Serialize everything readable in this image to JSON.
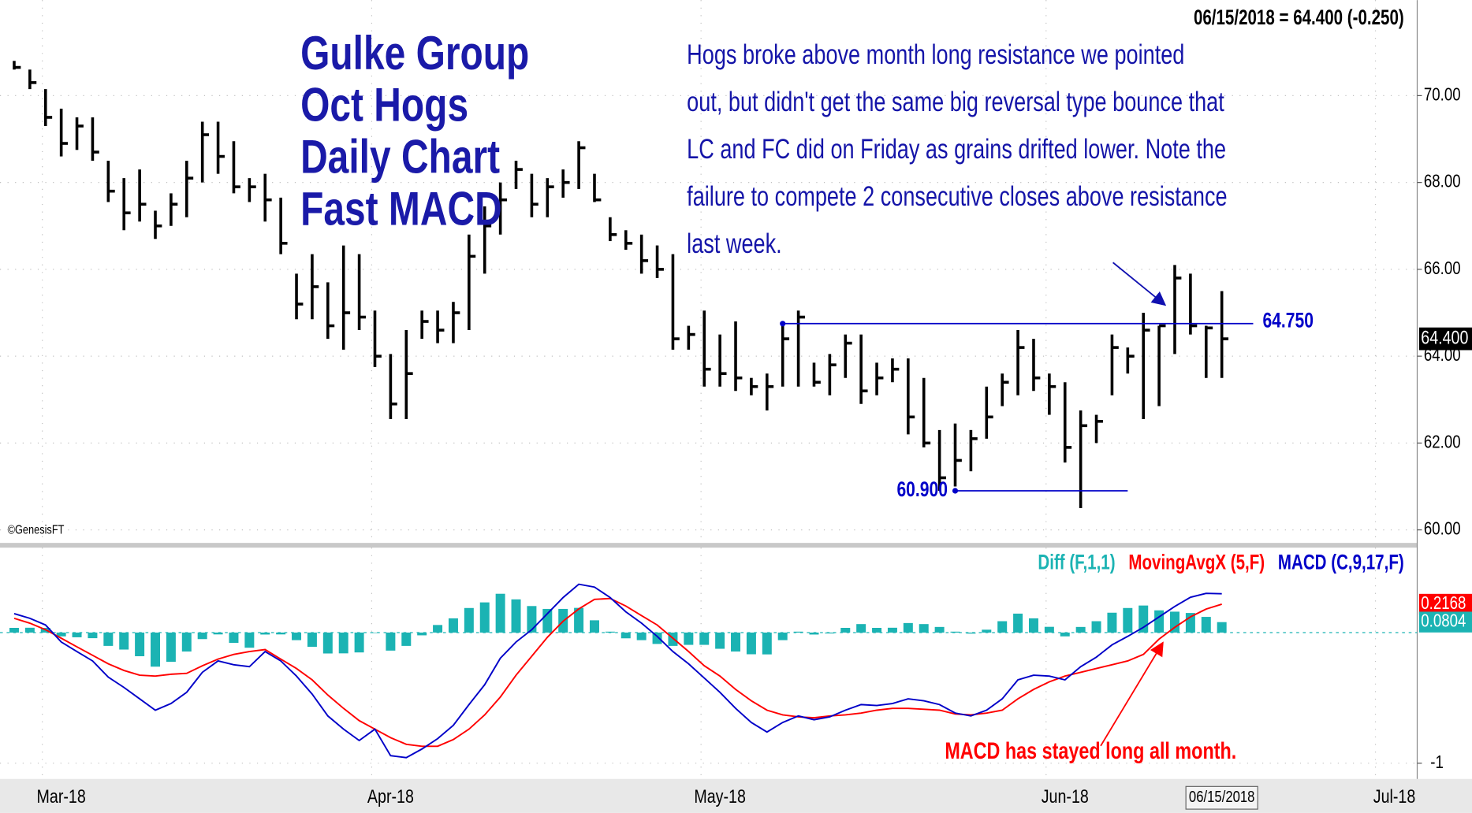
{
  "chart_data": [
    {
      "type": "ohlc",
      "header": "06/15/2018 = 64.400 (-0.250)",
      "title_lines": [
        "Gulke Group",
        "Oct Hogs",
        "Daily Chart",
        "Fast MACD"
      ],
      "note_lines": [
        "Hogs broke above month long resistance we pointed",
        "out, but didn't get the same big reversal type bounce that",
        "LC and FC did on Friday as grains drifted lower.  Note the",
        "failure to compete 2 consecutive closes above resistance",
        "last week."
      ],
      "copyright": "©GenesisFT",
      "cursor_date": "06/15/2018",
      "color": "#000000",
      "categories": [
        null,
        null,
        null,
        "Mar-18",
        null,
        null,
        null,
        null,
        null,
        null,
        null,
        null,
        null,
        null,
        null,
        null,
        null,
        null,
        null,
        null,
        null,
        null,
        null,
        null,
        "Apr-18",
        null,
        null,
        null,
        null,
        null,
        null,
        null,
        null,
        null,
        null,
        null,
        null,
        null,
        null,
        null,
        null,
        null,
        null,
        null,
        null,
        "May-18",
        null,
        null,
        null,
        null,
        null,
        null,
        null,
        null,
        null,
        null,
        null,
        null,
        null,
        null,
        null,
        null,
        null,
        null,
        null,
        null,
        null,
        "Jun-18",
        null,
        null,
        null,
        null,
        null,
        null,
        null,
        null,
        null,
        null,
        null,
        null,
        null,
        null,
        null,
        null,
        null,
        null,
        null,
        null,
        "Jul-18"
      ],
      "high": [
        70.8,
        70.6,
        70.15,
        69.7,
        69.5,
        69.5,
        68.5,
        68.1,
        68.3,
        67.35,
        67.75,
        68.5,
        69.4,
        69.4,
        68.95,
        68.1,
        68.2,
        67.65,
        65.9,
        66.35,
        65.7,
        66.55,
        66.35,
        65.05,
        64.05,
        64.6,
        65.05,
        65.05,
        65.25,
        66.8,
        67.45,
        68.0,
        68.5,
        68.2,
        68.1,
        68.3,
        68.95,
        68.2,
        67.2,
        66.9,
        66.8,
        66.55,
        66.35,
        64.7,
        65.05,
        64.5,
        64.8,
        63.5,
        63.6,
        64.8,
        65.05,
        63.85,
        64.05,
        64.5,
        64.5,
        63.85,
        63.95,
        63.95,
        63.5,
        62.3,
        62.45,
        62.3,
        63.3,
        63.6,
        64.6,
        64.4,
        63.6,
        63.4,
        62.75,
        62.65,
        64.5,
        64.2,
        65.0,
        64.7,
        66.1,
        65.9,
        64.7,
        65.5,
        null,
        null,
        null,
        null,
        null,
        null,
        null,
        null,
        null,
        null,
        null
      ],
      "low": [
        70.6,
        70.15,
        69.3,
        68.6,
        68.75,
        68.5,
        67.55,
        66.9,
        67.1,
        66.7,
        67.0,
        67.2,
        68.0,
        68.2,
        67.75,
        67.55,
        67.1,
        66.35,
        64.85,
        64.85,
        64.4,
        64.15,
        64.6,
        63.75,
        62.55,
        62.55,
        64.4,
        64.3,
        64.3,
        64.6,
        65.9,
        66.8,
        67.85,
        67.2,
        67.2,
        67.65,
        67.85,
        67.55,
        66.65,
        66.45,
        65.9,
        65.8,
        64.15,
        64.15,
        63.3,
        63.3,
        63.2,
        63.1,
        62.75,
        63.3,
        63.3,
        63.3,
        63.1,
        63.5,
        62.9,
        63.1,
        63.4,
        62.2,
        61.9,
        60.9,
        61.0,
        61.35,
        62.1,
        62.85,
        63.1,
        63.2,
        62.65,
        61.55,
        60.5,
        62.0,
        63.1,
        63.6,
        62.55,
        62.85,
        64.05,
        64.5,
        63.5,
        63.5,
        null,
        null,
        null,
        null,
        null,
        null,
        null,
        null,
        null,
        null,
        null
      ],
      "close": [
        70.65,
        70.3,
        69.5,
        68.9,
        69.3,
        68.7,
        67.8,
        67.3,
        67.5,
        67.0,
        67.5,
        68.1,
        69.1,
        68.6,
        67.9,
        67.9,
        67.6,
        66.6,
        65.2,
        65.6,
        64.7,
        65.0,
        64.9,
        64.0,
        62.9,
        63.6,
        64.8,
        64.6,
        65.0,
        66.3,
        67.0,
        67.6,
        68.3,
        67.5,
        67.9,
        68.0,
        68.8,
        67.6,
        66.8,
        66.6,
        66.2,
        66.0,
        64.4,
        64.5,
        63.7,
        63.6,
        63.5,
        63.3,
        63.3,
        64.4,
        64.9,
        63.4,
        63.8,
        64.3,
        63.2,
        63.5,
        63.7,
        62.6,
        62.0,
        61.2,
        61.6,
        62.1,
        62.6,
        63.4,
        64.2,
        63.5,
        63.3,
        61.9,
        62.4,
        62.5,
        64.2,
        64.0,
        64.6,
        64.7,
        65.8,
        64.7,
        64.65,
        64.4,
        null,
        null,
        null,
        null,
        null,
        null,
        null,
        null,
        null,
        null,
        null
      ],
      "levels": [
        {
          "value": 64.75,
          "label": "64.750"
        },
        {
          "value": 60.9,
          "label": "60.900"
        }
      ],
      "last_price": {
        "value": 64.4,
        "label": "64.400"
      },
      "ylim": [
        59.7,
        72.2
      ],
      "yticks": [
        {
          "value": 60,
          "label": "60.00"
        },
        {
          "value": 62,
          "label": "62.00"
        },
        {
          "value": 64,
          "label": "64.00"
        },
        {
          "value": 66,
          "label": "66.00"
        },
        {
          "value": 68,
          "label": "68.00"
        },
        {
          "value": 70,
          "label": "70.00"
        }
      ],
      "grid": true
    },
    {
      "type": "macd",
      "annotation": "MACD has stayed long all month.",
      "series": [
        {
          "name": "Diff (F,1,1)",
          "type": "histogram",
          "color": "#1bb3b3",
          "values": [
            0.036,
            0.037,
            0.036,
            -0.029,
            -0.036,
            -0.043,
            -0.102,
            -0.13,
            -0.181,
            -0.261,
            -0.224,
            -0.145,
            -0.05,
            -0.014,
            -0.079,
            -0.116,
            -0.015,
            -0.014,
            -0.058,
            -0.109,
            -0.16,
            -0.159,
            -0.152,
            0,
            -0.138,
            -0.102,
            -0.021,
            0.058,
            0.109,
            0.188,
            0.231,
            0.297,
            0.254,
            0.203,
            0.181,
            0.181,
            0.189,
            0.094,
            0.007,
            -0.044,
            -0.058,
            -0.087,
            -0.102,
            -0.094,
            -0.094,
            -0.124,
            -0.145,
            -0.166,
            -0.167,
            -0.058,
            0.007,
            -0.015,
            -0.007,
            0.036,
            0.065,
            0.036,
            0.037,
            0.073,
            0.065,
            0.043,
            0.007,
            -0.008,
            0.022,
            0.087,
            0.145,
            0.109,
            0.044,
            -0.029,
            0.043,
            0.087,
            0.152,
            0.188,
            0.207,
            0.17,
            0.16,
            0.15,
            0.12,
            0.08,
            null,
            null,
            null,
            null,
            null,
            null,
            null,
            null,
            null,
            null,
            null
          ]
        },
        {
          "name": "MovingAvgX (5,F)",
          "type": "line",
          "color": "#ff0000",
          "values": [
            0.109,
            0.072,
            0.022,
            -0.043,
            -0.109,
            -0.174,
            -0.239,
            -0.29,
            -0.326,
            -0.333,
            -0.319,
            -0.312,
            -0.254,
            -0.203,
            -0.167,
            -0.145,
            -0.13,
            -0.203,
            -0.275,
            -0.362,
            -0.478,
            -0.58,
            -0.674,
            -0.739,
            -0.804,
            -0.855,
            -0.87,
            -0.87,
            -0.819,
            -0.739,
            -0.63,
            -0.493,
            -0.326,
            -0.181,
            -0.036,
            0.087,
            0.181,
            0.254,
            0.261,
            0.203,
            0.13,
            0.058,
            -0.043,
            -0.145,
            -0.254,
            -0.333,
            -0.435,
            -0.522,
            -0.594,
            -0.63,
            -0.645,
            -0.652,
            -0.638,
            -0.63,
            -0.616,
            -0.594,
            -0.58,
            -0.58,
            -0.587,
            -0.594,
            -0.623,
            -0.63,
            -0.616,
            -0.594,
            -0.507,
            -0.435,
            -0.377,
            -0.333,
            -0.304,
            -0.275,
            -0.246,
            -0.217,
            -0.167,
            -0.05,
            0.04,
            0.12,
            0.18,
            0.217,
            null,
            null,
            null,
            null,
            null,
            null,
            null,
            null,
            null,
            null,
            null
          ]
        },
        {
          "name": "MACD (C,9,17,F)",
          "type": "line",
          "color": "#0000c8",
          "values": [
            0.145,
            0.109,
            0.058,
            -0.072,
            -0.145,
            -0.217,
            -0.341,
            -0.42,
            -0.507,
            -0.594,
            -0.543,
            -0.457,
            -0.304,
            -0.217,
            -0.246,
            -0.261,
            -0.145,
            -0.217,
            -0.333,
            -0.471,
            -0.638,
            -0.739,
            -0.826,
            -0.739,
            -0.942,
            -0.957,
            -0.891,
            -0.812,
            -0.71,
            -0.551,
            -0.399,
            -0.196,
            -0.072,
            0.022,
            0.145,
            0.268,
            0.37,
            0.348,
            0.268,
            0.159,
            0.072,
            -0.029,
            -0.145,
            -0.239,
            -0.348,
            -0.457,
            -0.58,
            -0.688,
            -0.761,
            -0.688,
            -0.638,
            -0.667,
            -0.645,
            -0.594,
            -0.551,
            -0.558,
            -0.543,
            -0.507,
            -0.522,
            -0.551,
            -0.616,
            -0.638,
            -0.594,
            -0.507,
            -0.362,
            -0.326,
            -0.333,
            -0.362,
            -0.261,
            -0.188,
            -0.094,
            -0.029,
            0.04,
            0.12,
            0.2,
            0.27,
            0.3,
            0.297,
            null,
            null,
            null,
            null,
            null,
            null,
            null,
            null,
            null,
            null,
            null
          ]
        }
      ],
      "badges": [
        {
          "value": 0.2168,
          "label": "0.2168",
          "color": "#ff0000"
        },
        {
          "value": 0.0804,
          "label": "0.0804",
          "color": "#1bb3b3"
        }
      ],
      "ylim": [
        -1.12,
        0.65
      ],
      "yticks": [
        -1
      ],
      "grid": true
    }
  ]
}
